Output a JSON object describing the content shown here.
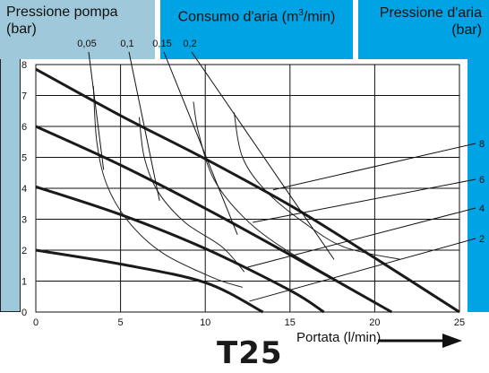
{
  "chart_data": {
    "type": "line",
    "title": "T25",
    "header_left": [
      "Pressione pompa",
      "(bar)"
    ],
    "header_middle": [
      "Consumo d'aria (m",
      "3",
      "/min)"
    ],
    "header_right": [
      "Pressione d'aria",
      "(bar)"
    ],
    "xlabel": "Portata (l/min)",
    "x_ticks": [
      "0",
      "5",
      "10",
      "15",
      "20",
      "25"
    ],
    "y_ticks": [
      "0",
      "1",
      "2",
      "3",
      "4",
      "5",
      "6",
      "7",
      "8"
    ],
    "xlim": [
      0,
      25
    ],
    "ylim": [
      0,
      8
    ],
    "grid": true,
    "series": [
      {
        "name": "8",
        "x": [
          0,
          5,
          10,
          15,
          20,
          25
        ],
        "y": [
          7.85,
          6.35,
          4.95,
          3.45,
          1.75,
          0
        ]
      },
      {
        "name": "6",
        "x": [
          0,
          5,
          10,
          15,
          21
        ],
        "y": [
          6.0,
          4.75,
          3.35,
          1.85,
          0
        ]
      },
      {
        "name": "4",
        "x": [
          0,
          5,
          10,
          15,
          17
        ],
        "y": [
          4.05,
          3.15,
          2.05,
          0.7,
          0
        ]
      },
      {
        "name": "2",
        "x": [
          0,
          5,
          10,
          13.4
        ],
        "y": [
          2.0,
          1.55,
          0.95,
          0
        ]
      }
    ],
    "consumption_curves": [
      {
        "label": "0,05",
        "x": [
          3.4,
          3.6,
          4.2,
          5.5,
          7.5,
          10.5,
          12.2
        ],
        "y": [
          7.3,
          5.5,
          4.1,
          2.9,
          1.9,
          1.1,
          0.8
        ]
      },
      {
        "label": "0,1",
        "x": [
          6.1,
          6.4,
          7.2,
          8.8,
          11.0,
          12.3
        ],
        "y": [
          6.3,
          5.0,
          3.9,
          2.9,
          2.1,
          1.3
        ]
      },
      {
        "label": "0,15",
        "x": [
          9.3,
          9.6,
          10.5,
          12.2,
          14.5,
          18.5
        ],
        "y": [
          6.8,
          5.8,
          4.3,
          3.1,
          2.1,
          0.8
        ]
      },
      {
        "label": "0,2",
        "x": [
          11.7,
          12.2,
          13.6,
          15.8,
          18.2,
          21.5
        ],
        "y": [
          6.45,
          5.0,
          3.9,
          2.9,
          2.1,
          1.7
        ]
      }
    ],
    "colors": {
      "left_panel": "#9fc8da",
      "blue_panel": "#00a3e3",
      "lines": "#1a1a1a"
    }
  }
}
